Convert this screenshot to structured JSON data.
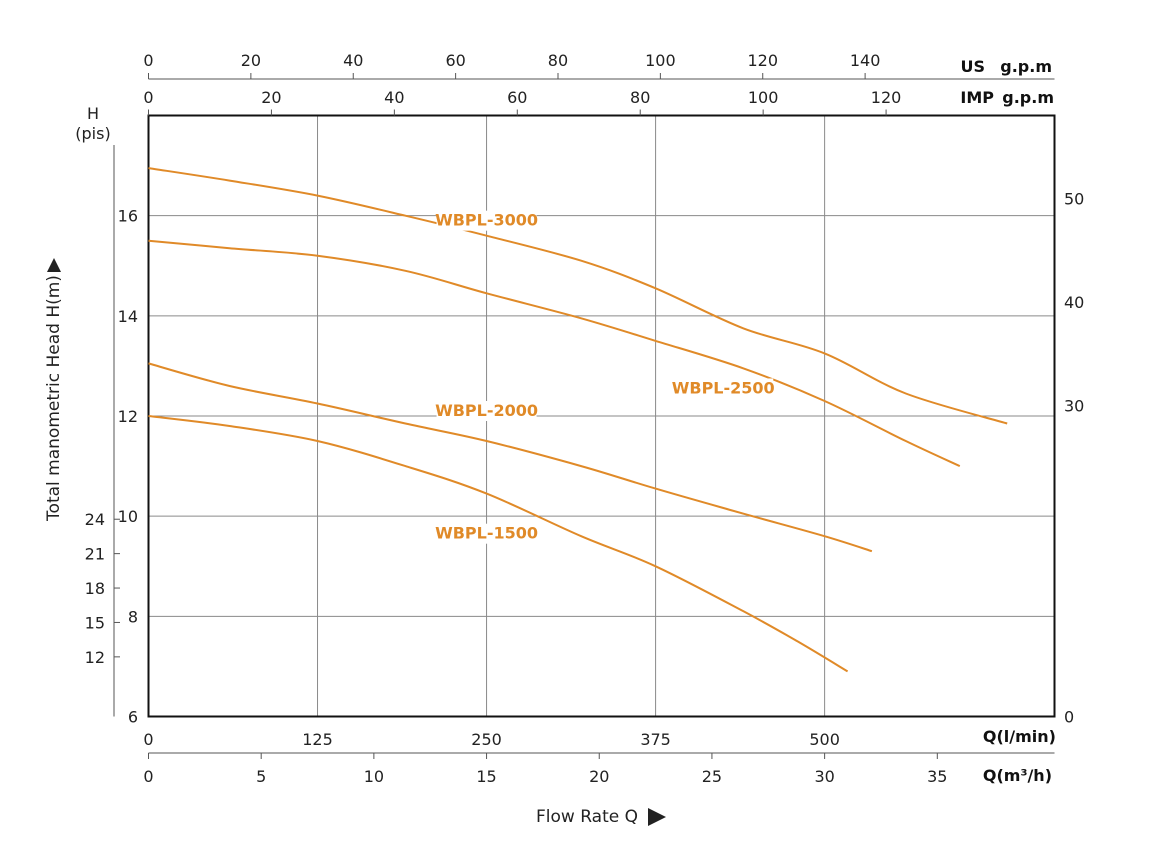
{
  "chart_data": {
    "type": "line",
    "x_axes": {
      "flow_l_min": {
        "unit_label": "Q(l/min)",
        "range": [
          0,
          670
        ],
        "ticks": [
          0,
          125,
          250,
          375,
          500
        ]
      },
      "flow_m3h": {
        "unit_label": "Q(m³/h)",
        "range": [
          0,
          40.2
        ],
        "ticks": [
          0,
          5,
          10,
          15,
          20,
          25,
          30,
          35
        ]
      },
      "imp_gpm": {
        "unit_label_1": "IMP",
        "unit_label_2": "g.p.m",
        "range": [
          0,
          147.4
        ],
        "ticks": [
          0,
          20,
          40,
          60,
          80,
          100,
          120
        ]
      },
      "us_gpm": {
        "unit_label_1": "US",
        "unit_label_2": "g.p.m",
        "range": [
          0,
          177
        ],
        "ticks": [
          0,
          20,
          40,
          60,
          80,
          100,
          120,
          140
        ]
      },
      "title": "Flow Rate Q"
    },
    "y_axes": {
      "head_m": {
        "range": [
          6,
          18
        ],
        "ticks": [
          6,
          8,
          10,
          12,
          14,
          16
        ]
      },
      "head_ft": {
        "unit_label_1": "H",
        "unit_label_2": "(pis)",
        "range": [
          6.8,
          59.2
        ],
        "ticks": [
          12,
          15,
          18,
          21,
          24
        ]
      },
      "right": {
        "range": [
          0,
          58
        ],
        "ticks": [
          0,
          30,
          40,
          50
        ]
      },
      "title": "Total manometric  Head H(m)"
    },
    "grid": true,
    "series": [
      {
        "name": "WBPL-3000",
        "color": "#e08a28",
        "x": [
          0,
          60,
          125,
          190,
          250,
          320,
          375,
          440,
          500,
          560,
          635
        ],
        "y": [
          16.95,
          16.7,
          16.4,
          16.0,
          15.6,
          15.1,
          14.55,
          13.75,
          13.25,
          12.45,
          11.85
        ]
      },
      {
        "name": "WBPL-2500",
        "color": "#e08a28",
        "x": [
          0,
          60,
          125,
          190,
          250,
          320,
          375,
          440,
          500,
          560,
          600
        ],
        "y": [
          15.5,
          15.35,
          15.2,
          14.9,
          14.45,
          13.95,
          13.5,
          12.95,
          12.3,
          11.5,
          11.0
        ]
      },
      {
        "name": "WBPL-2000",
        "color": "#e08a28",
        "x": [
          0,
          60,
          125,
          190,
          250,
          320,
          375,
          440,
          500,
          535
        ],
        "y": [
          13.05,
          12.6,
          12.25,
          11.85,
          11.5,
          11.0,
          10.55,
          10.05,
          9.6,
          9.3
        ]
      },
      {
        "name": "WBPL-1500",
        "color": "#e08a28",
        "x": [
          0,
          60,
          125,
          190,
          250,
          320,
          375,
          440,
          480,
          517
        ],
        "y": [
          12.0,
          11.8,
          11.5,
          11.0,
          10.45,
          9.6,
          9.0,
          8.1,
          7.5,
          6.9
        ]
      }
    ]
  }
}
